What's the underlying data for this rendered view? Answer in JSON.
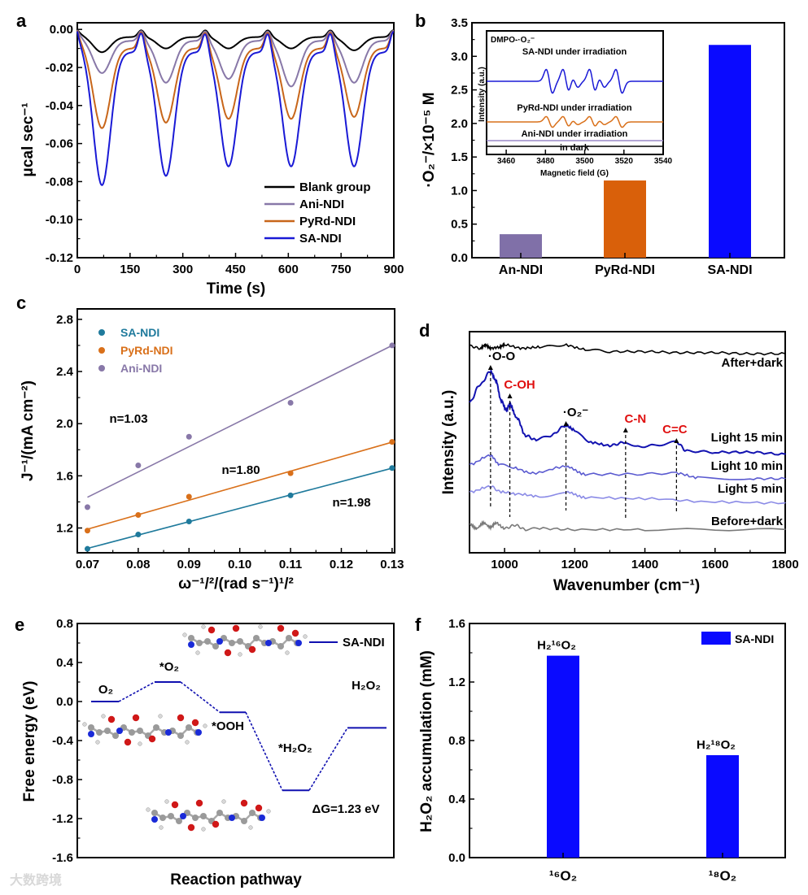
{
  "panel_letters": [
    "a",
    "b",
    "c",
    "d",
    "e",
    "f"
  ],
  "watermark": "大数跨境",
  "chart_data": [
    {
      "panel": "a",
      "type": "line",
      "xlabel": "Time (s)",
      "ylabel": "μcal sec⁻¹",
      "xlim": [
        0,
        900
      ],
      "ylim": [
        -0.12,
        0.0035
      ],
      "xticks": [
        0,
        150,
        300,
        450,
        600,
        750,
        900
      ],
      "yticks": [
        0.0,
        -0.02,
        -0.04,
        -0.06,
        -0.08,
        -0.1,
        -0.12
      ],
      "dip_times_s": [
        70,
        252,
        430,
        608,
        787
      ],
      "legend_position": "bottom-right",
      "series": [
        {
          "name": "Blank group",
          "color": "#000000",
          "baseline": -0.004,
          "dip_minima": [
            -0.012,
            -0.01,
            -0.01,
            -0.01,
            -0.011
          ]
        },
        {
          "name": "Ani-NDI",
          "color": "#8878a8",
          "baseline": -0.006,
          "dip_minima": [
            -0.023,
            -0.028,
            -0.026,
            -0.03,
            -0.028
          ]
        },
        {
          "name": "PyRd-NDI",
          "color": "#c8661a",
          "baseline": -0.01,
          "dip_minima": [
            -0.052,
            -0.049,
            -0.047,
            -0.047,
            -0.046
          ]
        },
        {
          "name": "SA-NDI",
          "color": "#1a1ad6",
          "baseline": -0.012,
          "dip_minima": [
            -0.082,
            -0.077,
            -0.072,
            -0.072,
            -0.072
          ]
        }
      ]
    },
    {
      "panel": "b",
      "type": "bar",
      "ylabel": "·O₂⁻/×10⁻⁵ M",
      "ylim": [
        0,
        3.5
      ],
      "yticks": [
        0.0,
        0.5,
        1.0,
        1.5,
        2.0,
        2.5,
        3.0,
        3.5
      ],
      "categories": [
        "An-NDI",
        "PyRd-NDI",
        "SA-NDI"
      ],
      "values": [
        0.35,
        1.15,
        3.17
      ],
      "colors": [
        "#8070a8",
        "#d9600a",
        "#0a0aff"
      ],
      "inset": {
        "type": "line",
        "title": "DMPO-·O₂⁻",
        "xlabel": "Magnetic field (G)",
        "ylabel": "Intensity (a.u.)",
        "xlim": [
          3450,
          3540
        ],
        "xticks": [
          3460,
          3480,
          3500,
          3520,
          3540
        ],
        "line_positions_G": [
          3482,
          3490.5,
          3495,
          3504,
          3508.5,
          3517.5
        ],
        "line_amplitudes": [
          1.0,
          1.0,
          0.5,
          1.0,
          0.5,
          1.0
        ],
        "series": [
          {
            "name": "SA-NDI under irradiation",
            "color": "#1a1ad6",
            "scale": 1.0
          },
          {
            "name": "PyRd-NDI under irradiation",
            "color": "#d9701a",
            "scale": 0.45
          },
          {
            "name": "Ani-NDI under irradiation",
            "color": "#9a88c8",
            "scale": 0.0
          },
          {
            "name": "in dark",
            "color": "#000000",
            "scale": 0.0
          }
        ]
      }
    },
    {
      "panel": "c",
      "type": "scatter",
      "xlabel": "ω⁻¹/²/(rad s⁻¹)¹/²",
      "ylabel": "J⁻¹/(mA cm⁻²)",
      "xlim": [
        0.068,
        0.1305
      ],
      "ylim": [
        1.01,
        2.88
      ],
      "xticks": [
        0.07,
        0.08,
        0.09,
        0.1,
        0.11,
        0.12,
        0.13
      ],
      "yticks": [
        1.2,
        1.6,
        2.0,
        2.4,
        2.8
      ],
      "x": [
        0.07,
        0.08,
        0.09,
        0.11,
        0.13
      ],
      "legend_position": "top-left",
      "series": [
        {
          "name": "SA-NDI",
          "color": "#1f7a9c",
          "values": [
            1.04,
            1.15,
            1.25,
            1.45,
            1.66
          ],
          "annotation": "n=1.98"
        },
        {
          "name": "PyRd-NDI",
          "color": "#d9701a",
          "values": [
            1.18,
            1.3,
            1.44,
            1.62,
            1.86
          ],
          "annotation": "n=1.80"
        },
        {
          "name": "Ani-NDI",
          "color": "#8878a8",
          "values": [
            1.36,
            1.68,
            1.9,
            2.16,
            2.6
          ],
          "annotation": "n=1.03"
        }
      ]
    },
    {
      "panel": "d",
      "type": "line",
      "xlabel": "Wavenumber (cm⁻¹)",
      "ylabel": "Intensity (a.u.)",
      "xlim": [
        900,
        1800
      ],
      "ylim": [
        0,
        10
      ],
      "xticks": [
        1000,
        1200,
        1400,
        1600,
        1800
      ],
      "series": [
        {
          "name": "After+dark",
          "color": "#000000",
          "points": [
            [
              900,
              9.35
            ],
            [
              930,
              9.25
            ],
            [
              945,
              9.4
            ],
            [
              960,
              9.25
            ],
            [
              985,
              9.3
            ],
            [
              1000,
              9.4
            ],
            [
              1050,
              9.25
            ],
            [
              1100,
              9.3
            ],
            [
              1170,
              9.4
            ],
            [
              1230,
              9.2
            ],
            [
              1300,
              9.1
            ],
            [
              1400,
              9.1
            ],
            [
              1500,
              9.05
            ],
            [
              1600,
              9.05
            ],
            [
              1700,
              9.0
            ],
            [
              1800,
              9.0
            ]
          ]
        },
        {
          "name": "Light 15 min",
          "color": "#1212b0",
          "points": [
            [
              900,
              6.8
            ],
            [
              930,
              7.6
            ],
            [
              960,
              8.2
            ],
            [
              975,
              7.8
            ],
            [
              990,
              6.9
            ],
            [
              1005,
              6.45
            ],
            [
              1015,
              6.7
            ],
            [
              1035,
              6.1
            ],
            [
              1060,
              5.3
            ],
            [
              1090,
              5.1
            ],
            [
              1130,
              5.3
            ],
            [
              1175,
              5.75
            ],
            [
              1200,
              5.55
            ],
            [
              1240,
              5.0
            ],
            [
              1300,
              4.85
            ],
            [
              1345,
              5.0
            ],
            [
              1380,
              4.8
            ],
            [
              1420,
              4.85
            ],
            [
              1490,
              5.0
            ],
            [
              1520,
              4.6
            ],
            [
              1600,
              4.55
            ],
            [
              1700,
              4.55
            ],
            [
              1800,
              4.45
            ]
          ]
        },
        {
          "name": "Light 10 min",
          "color": "#5a5ad0",
          "points": [
            [
              900,
              4.0
            ],
            [
              960,
              4.4
            ],
            [
              985,
              4.0
            ],
            [
              1020,
              3.85
            ],
            [
              1080,
              3.6
            ],
            [
              1175,
              3.9
            ],
            [
              1230,
              3.55
            ],
            [
              1350,
              3.55
            ],
            [
              1490,
              3.6
            ],
            [
              1550,
              3.4
            ],
            [
              1700,
              3.35
            ],
            [
              1800,
              3.35
            ]
          ]
        },
        {
          "name": "Light 5 min",
          "color": "#8a8ae6",
          "points": [
            [
              900,
              2.75
            ],
            [
              960,
              3.0
            ],
            [
              990,
              2.75
            ],
            [
              1040,
              2.65
            ],
            [
              1100,
              2.55
            ],
            [
              1175,
              2.75
            ],
            [
              1230,
              2.5
            ],
            [
              1400,
              2.45
            ],
            [
              1600,
              2.3
            ],
            [
              1800,
              2.25
            ]
          ]
        },
        {
          "name": "Before+dark",
          "color": "#7a7a7a",
          "points": [
            [
              900,
              1.3
            ],
            [
              920,
              1.1
            ],
            [
              940,
              1.35
            ],
            [
              960,
              1.15
            ],
            [
              975,
              1.35
            ],
            [
              1000,
              1.1
            ],
            [
              1030,
              1.25
            ],
            [
              1060,
              1.05
            ],
            [
              1100,
              1.1
            ],
            [
              1200,
              1.05
            ],
            [
              1400,
              1.05
            ],
            [
              1800,
              1.05
            ]
          ]
        }
      ],
      "annotations": [
        {
          "label": "·O-O",
          "wavenumber": 960,
          "color": "#000000"
        },
        {
          "label": "C-OH",
          "wavenumber": 1015,
          "color": "#e01010"
        },
        {
          "label": "·O₂⁻",
          "wavenumber": 1175,
          "color": "#000000"
        },
        {
          "label": "C-N",
          "wavenumber": 1345,
          "color": "#e01010"
        },
        {
          "label": "C=C",
          "wavenumber": 1490,
          "color": "#e01010"
        }
      ]
    },
    {
      "panel": "e",
      "type": "line",
      "xlabel": "Reaction pathway",
      "ylabel": "Free energy (eV)",
      "ylim": [
        -1.6,
        0.8
      ],
      "yticks": [
        0.8,
        0.4,
        0.0,
        -0.4,
        -0.8,
        -1.2,
        -1.6
      ],
      "legend": "SA-NDI",
      "color": "#1010b0",
      "steps": [
        {
          "label": "O₂",
          "energy": 0.0
        },
        {
          "label": "*O₂",
          "energy": 0.2
        },
        {
          "label": "*OOH",
          "energy": -0.11
        },
        {
          "label": "*H₂O₂",
          "energy": -0.91
        },
        {
          "label": "H₂O₂",
          "energy": -0.27
        }
      ],
      "annotation": "ΔG=1.23 eV"
    },
    {
      "panel": "f",
      "type": "bar",
      "ylabel": "H₂O₂ accumulation (mM)",
      "ylim": [
        0,
        1.6
      ],
      "yticks": [
        0.0,
        0.4,
        0.8,
        1.2,
        1.6
      ],
      "categories": [
        "¹⁶O₂",
        "¹⁸O₂"
      ],
      "values": [
        1.38,
        0.7
      ],
      "bar_labels": [
        "H₂¹⁶O₂",
        "H₂¹⁸O₂"
      ],
      "legend": "SA-NDI",
      "color": "#0a0aff"
    }
  ]
}
